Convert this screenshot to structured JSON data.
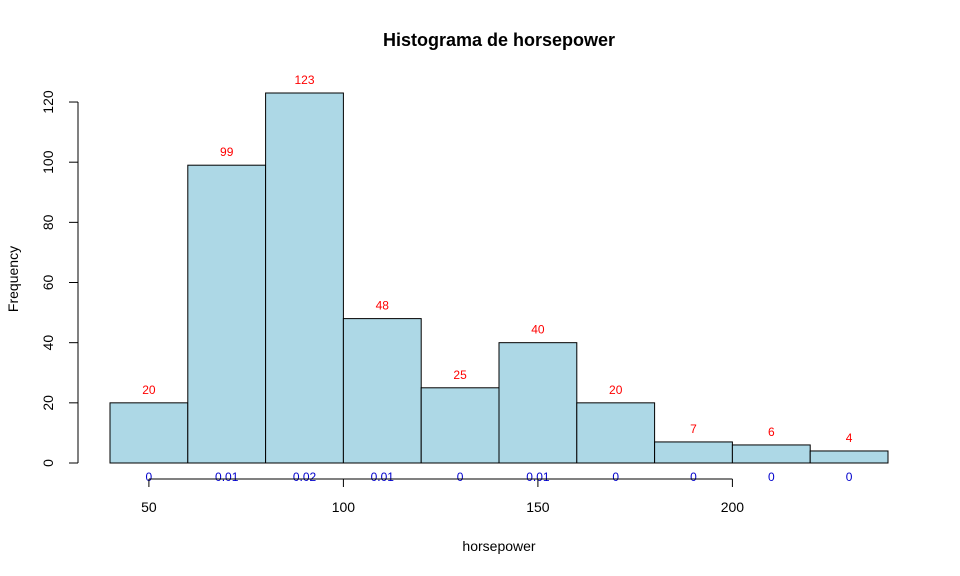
{
  "chart_data": {
    "type": "bar",
    "title": "Histograma de horsepower",
    "xlabel": "horsepower",
    "ylabel": "Frequency",
    "bins": [
      {
        "start": 40,
        "end": 60,
        "count": 20,
        "count_label": "20",
        "density_label": "0"
      },
      {
        "start": 60,
        "end": 80,
        "count": 99,
        "count_label": "99",
        "density_label": "0.01"
      },
      {
        "start": 80,
        "end": 100,
        "count": 123,
        "count_label": "123",
        "density_label": "0.02"
      },
      {
        "start": 100,
        "end": 120,
        "count": 48,
        "count_label": "48",
        "density_label": "0.01"
      },
      {
        "start": 120,
        "end": 140,
        "count": 25,
        "count_label": "25",
        "density_label": "0"
      },
      {
        "start": 140,
        "end": 160,
        "count": 40,
        "count_label": "40",
        "density_label": "0.01"
      },
      {
        "start": 160,
        "end": 180,
        "count": 20,
        "count_label": "20",
        "density_label": "0"
      },
      {
        "start": 180,
        "end": 200,
        "count": 7,
        "count_label": "7",
        "density_label": "0"
      },
      {
        "start": 200,
        "end": 220,
        "count": 6,
        "count_label": "6",
        "density_label": "0"
      },
      {
        "start": 220,
        "end": 240,
        "count": 4,
        "count_label": "4",
        "density_label": "0"
      }
    ],
    "xlim": [
      40,
      240
    ],
    "ylim": [
      0,
      123
    ],
    "x_ticks": [
      50,
      100,
      150,
      200
    ],
    "x_tick_labels": [
      "50",
      "100",
      "150",
      "200"
    ],
    "y_ticks": [
      0,
      20,
      40,
      60,
      80,
      100,
      120
    ],
    "y_tick_labels": [
      "0",
      "20",
      "40",
      "60",
      "80",
      "100",
      "120"
    ],
    "grid": false,
    "legend": "none",
    "colors": {
      "bar_fill": "#add8e6",
      "bar_stroke": "#000000",
      "count_label": "#ff0000",
      "density_label": "#0000cc"
    }
  }
}
